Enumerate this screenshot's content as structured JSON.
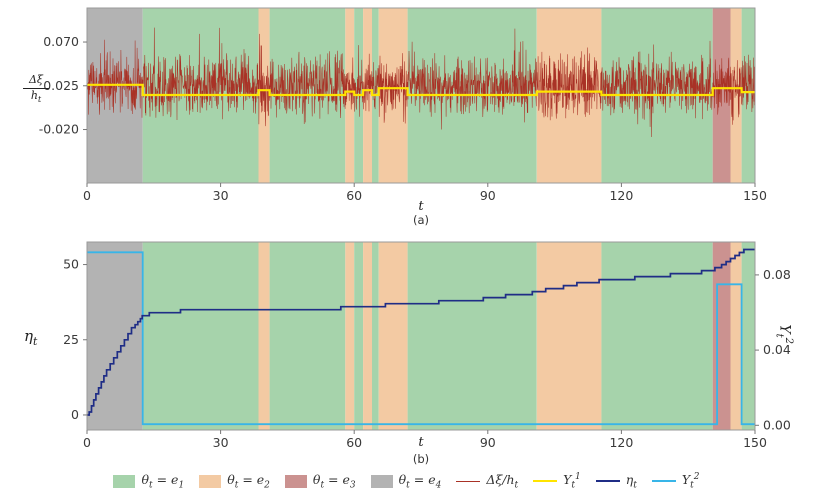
{
  "figure": {
    "panels": {
      "a": {
        "tag": "(a)",
        "xlabel": "t",
        "ylabel_num": "Δξ",
        "ylabel_den": "h_{t}"
      },
      "b": {
        "tag": "(b)",
        "xlabel": "t",
        "ylabel_left": "η_{t}",
        "ylabel_right": "Y_{t}^{2}"
      }
    }
  },
  "regimes": {
    "colors": {
      "e1": "#a6d3ab",
      "e2": "#f3caa3",
      "e3": "#cb9290",
      "e4": "#b3b3b3"
    },
    "segments": [
      {
        "from": 0,
        "to": 12.5,
        "state": "e4"
      },
      {
        "from": 12.5,
        "to": 38.5,
        "state": "e1"
      },
      {
        "from": 38.5,
        "to": 41,
        "state": "e2"
      },
      {
        "from": 41,
        "to": 58,
        "state": "e1"
      },
      {
        "from": 58,
        "to": 60,
        "state": "e2"
      },
      {
        "from": 60,
        "to": 62,
        "state": "e1"
      },
      {
        "from": 62,
        "to": 64,
        "state": "e2"
      },
      {
        "from": 64,
        "to": 65.5,
        "state": "e1"
      },
      {
        "from": 65.5,
        "to": 72,
        "state": "e2"
      },
      {
        "from": 72,
        "to": 101,
        "state": "e1"
      },
      {
        "from": 101,
        "to": 115.5,
        "state": "e2"
      },
      {
        "from": 115.5,
        "to": 140.5,
        "state": "e1"
      },
      {
        "from": 140.5,
        "to": 144.5,
        "state": "e3"
      },
      {
        "from": 144.5,
        "to": 147,
        "state": "e2"
      },
      {
        "from": 147,
        "to": 150,
        "state": "e1"
      }
    ]
  },
  "chart_data": [
    {
      "type": "line",
      "panel": "a",
      "title": "",
      "xlabel": "t",
      "ylabel": "Δξ/h_t",
      "xlim": [
        0,
        150
      ],
      "ylim": [
        -0.075,
        0.105
      ],
      "xticks": [
        0,
        30,
        60,
        90,
        120,
        150
      ],
      "xtick_labels": [
        "0",
        "30",
        "60",
        "90",
        "120",
        "150"
      ],
      "yticks": [
        0.07,
        0.025,
        -0.02
      ],
      "ytick_labels": [
        "0.070",
        "0.025",
        "-0.020"
      ],
      "grid": false,
      "series": [
        {
          "name": "dxi-ht",
          "kind": "noise",
          "color": "#a93226",
          "width": 0.55,
          "mean": 0.025,
          "std": 0.023,
          "n": 2600,
          "seed": 77
        },
        {
          "name": "y1",
          "kind": "step",
          "color": "#ffe400",
          "width": 2.2,
          "points": [
            [
              0,
              0.026
            ],
            [
              12.5,
              0.0155
            ],
            [
              38.5,
              0.0205
            ],
            [
              41,
              0.0155
            ],
            [
              58,
              0.019
            ],
            [
              60,
              0.0155
            ],
            [
              62,
              0.0205
            ],
            [
              64,
              0.0155
            ],
            [
              65.5,
              0.0225
            ],
            [
              72,
              0.0155
            ],
            [
              101,
              0.019
            ],
            [
              115.5,
              0.0155
            ],
            [
              140.5,
              0.0225
            ],
            [
              147,
              0.0185
            ],
            [
              150,
              0.0185
            ]
          ]
        }
      ]
    },
    {
      "type": "line",
      "panel": "b",
      "title": "",
      "xlabel": "t",
      "ylabel_left": "η_t",
      "ylabel_right": "Y_t^2",
      "xlim": [
        0,
        150
      ],
      "ylim_left": [
        -5,
        57.5
      ],
      "ylim_right": [
        -0.0025,
        0.0975
      ],
      "xticks": [
        0,
        30,
        60,
        90,
        120,
        150
      ],
      "xtick_labels": [
        "0",
        "30",
        "60",
        "90",
        "120",
        "150"
      ],
      "yticks_left": [
        0,
        25,
        50
      ],
      "ytick_labels_left": [
        "0",
        "25",
        "50"
      ],
      "yticks_right": [
        0.0,
        0.04,
        0.08
      ],
      "ytick_labels_right": [
        "0.00",
        "0.04",
        "0.08"
      ],
      "grid": false,
      "series": [
        {
          "name": "y2",
          "kind": "step",
          "axis": "right",
          "color": "#38b5e8",
          "width": 1.8,
          "points": [
            [
              0,
              0.092
            ],
            [
              12.5,
              0.0006
            ],
            [
              141.5,
              0.075
            ],
            [
              147,
              0.0006
            ],
            [
              150,
              0.0006
            ]
          ]
        },
        {
          "name": "eta",
          "kind": "step",
          "axis": "left",
          "color": "#1f2d86",
          "width": 1.7,
          "points": [
            [
              0,
              0
            ],
            [
              0.5,
              1
            ],
            [
              1,
              3
            ],
            [
              1.5,
              5
            ],
            [
              2,
              7
            ],
            [
              2.6,
              9
            ],
            [
              3.2,
              11
            ],
            [
              3.8,
              13
            ],
            [
              4.4,
              15
            ],
            [
              5.2,
              17
            ],
            [
              6,
              19
            ],
            [
              6.8,
              21
            ],
            [
              7.6,
              23
            ],
            [
              8.4,
              25
            ],
            [
              9.2,
              27
            ],
            [
              10,
              29
            ],
            [
              10.8,
              30
            ],
            [
              11.4,
              31
            ],
            [
              12,
              32
            ],
            [
              12.4,
              33
            ],
            [
              14,
              34
            ],
            [
              21,
              35
            ],
            [
              57,
              36
            ],
            [
              67,
              37
            ],
            [
              79,
              38
            ],
            [
              89,
              39
            ],
            [
              94,
              40
            ],
            [
              100,
              41
            ],
            [
              103,
              42
            ],
            [
              107,
              43
            ],
            [
              110,
              44
            ],
            [
              115,
              45
            ],
            [
              123,
              46
            ],
            [
              131,
              47
            ],
            [
              138,
              48
            ],
            [
              141,
              49
            ],
            [
              142.5,
              50
            ],
            [
              143.5,
              51
            ],
            [
              144.5,
              52
            ],
            [
              145.5,
              53
            ],
            [
              146.5,
              54
            ],
            [
              147.5,
              55
            ],
            [
              150,
              55
            ]
          ]
        }
      ]
    }
  ],
  "legend": {
    "items": [
      {
        "type": "patch",
        "color": "#a6d3ab",
        "label": "θ_{t} = e_{1}",
        "icon": "regime-e1-swatch"
      },
      {
        "type": "patch",
        "color": "#f3caa3",
        "label": "θ_{t} = e_{2}",
        "icon": "regime-e2-swatch"
      },
      {
        "type": "patch",
        "color": "#cb9290",
        "label": "θ_{t} = e_{3}",
        "icon": "regime-e3-swatch"
      },
      {
        "type": "patch",
        "color": "#b3b3b3",
        "label": "θ_{t} = e_{4}",
        "icon": "regime-e4-swatch"
      },
      {
        "type": "line",
        "color": "#a93226",
        "thin": true,
        "label": "Δξ/h_{t}",
        "icon": "noise-line-swatch"
      },
      {
        "type": "line",
        "color": "#ffe400",
        "label": "Y_{t}^{1}",
        "icon": "y1-line-swatch"
      },
      {
        "type": "line",
        "color": "#1f2d86",
        "label": "η_{t}",
        "icon": "eta-line-swatch"
      },
      {
        "type": "line",
        "color": "#38b5e8",
        "label": "Y_{t}^{2}",
        "icon": "y2-line-swatch"
      }
    ]
  }
}
